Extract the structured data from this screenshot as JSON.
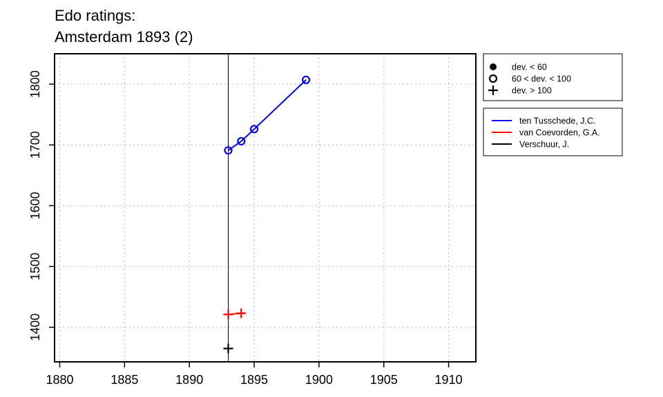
{
  "chart_data": {
    "type": "line",
    "title": [
      "Edo ratings:",
      "Amsterdam 1893 (2)"
    ],
    "xlabel": "",
    "ylabel": "",
    "xlim": [
      1879.6,
      1912.1
    ],
    "ylim": [
      1343,
      1850
    ],
    "x_ticks": [
      1880,
      1885,
      1890,
      1895,
      1900,
      1905,
      1910
    ],
    "y_ticks": [
      1400,
      1500,
      1600,
      1700,
      1800
    ],
    "grid": true,
    "reference_line_x": 1893,
    "legend_placement": "right-outside-top",
    "deviation_legend": [
      {
        "marker": "filled-circle",
        "label": "dev. < 60"
      },
      {
        "marker": "open-circle",
        "label": "60 < dev. < 100"
      },
      {
        "marker": "plus",
        "label": "dev. > 100"
      }
    ],
    "series": [
      {
        "name": "ten Tusschede, J.C.",
        "color": "#0000ff",
        "points": [
          {
            "x": 1893,
            "y": 1691,
            "marker": "open-circle"
          },
          {
            "x": 1894,
            "y": 1706,
            "marker": "open-circle"
          },
          {
            "x": 1895,
            "y": 1726,
            "marker": "open-circle"
          },
          {
            "x": 1899,
            "y": 1807,
            "marker": "open-circle"
          }
        ]
      },
      {
        "name": "van Coevorden, G.A.",
        "color": "#ff0000",
        "points": [
          {
            "x": 1893,
            "y": 1421,
            "marker": "plus"
          },
          {
            "x": 1894,
            "y": 1423,
            "marker": "plus"
          }
        ]
      },
      {
        "name": "Verschuur, J.",
        "color": "#000000",
        "points": [
          {
            "x": 1893,
            "y": 1365,
            "marker": "plus"
          }
        ]
      }
    ]
  }
}
